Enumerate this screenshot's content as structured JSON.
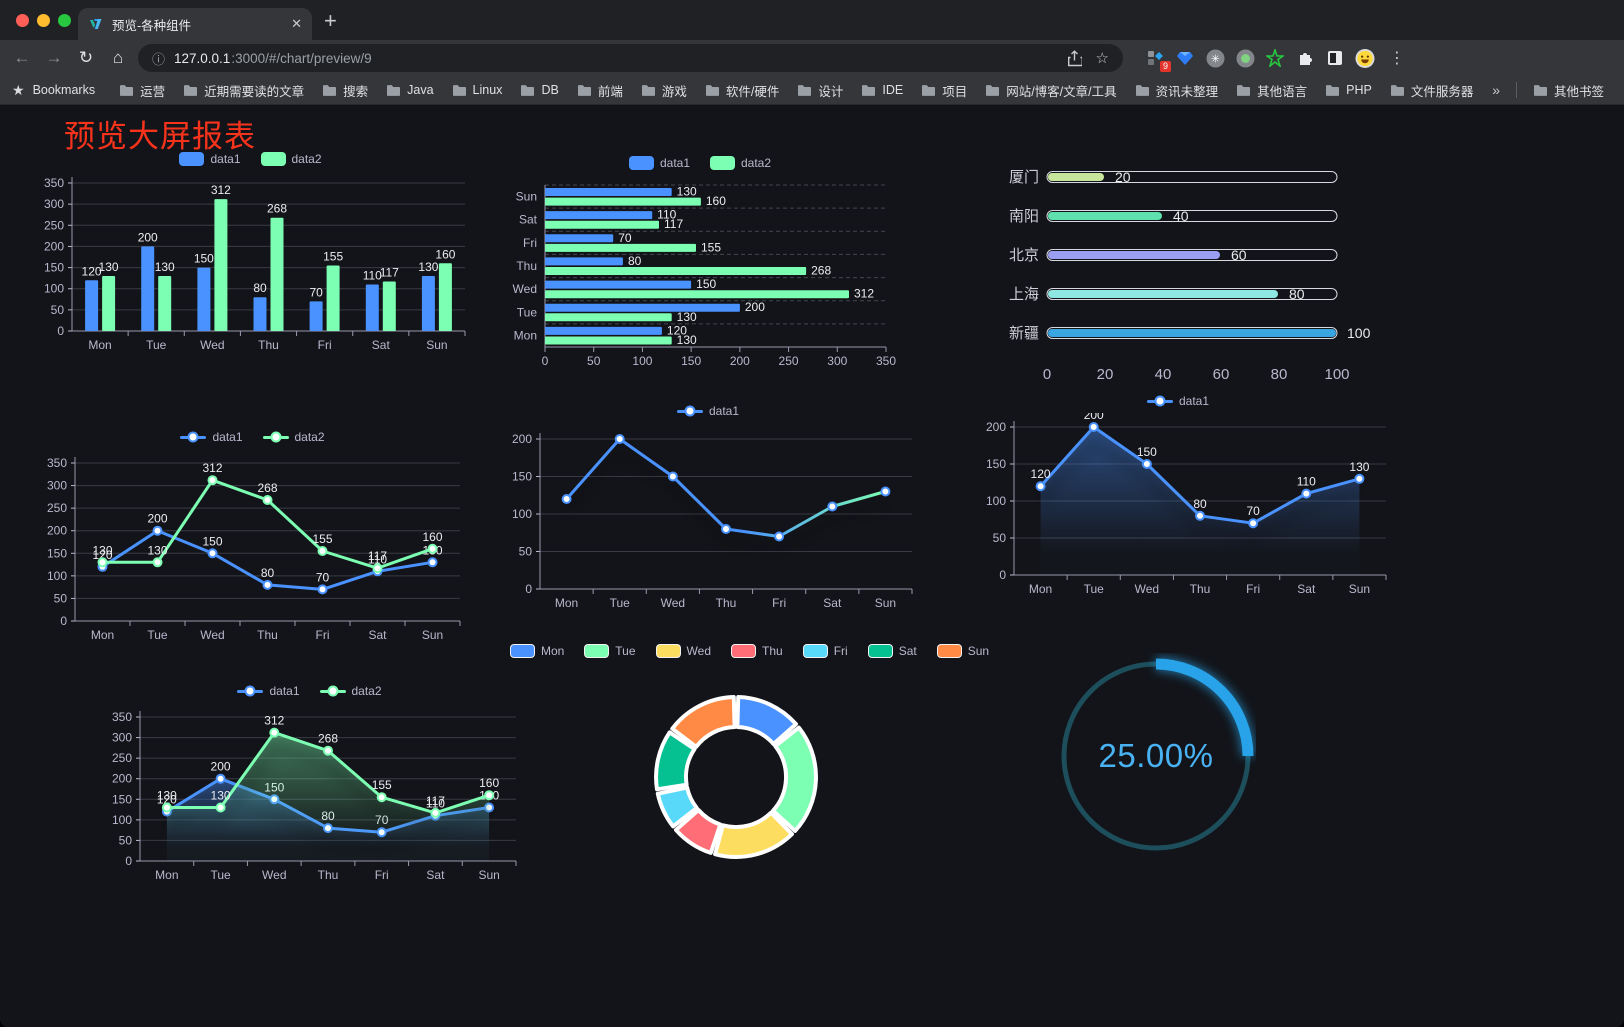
{
  "browser": {
    "tab": {
      "title": "预览-各种组件"
    },
    "new_tab_label": "+",
    "url": {
      "host": "127.0.0.1",
      "rest": ":3000/#/chart/preview/9"
    },
    "actions": {
      "extension_badge": "9"
    },
    "bookmarks_bar": {
      "label": "Bookmarks",
      "folders": [
        "运营",
        "近期需要读的文章",
        "搜索",
        "Java",
        "Linux",
        "DB",
        "前端",
        "游戏",
        "软件/硬件",
        "设计",
        "IDE",
        "项目",
        "网站/博客/文章/工具",
        "资讯未整理",
        "其他语言",
        "PHP",
        "文件服务器"
      ],
      "overflow": "»",
      "other": "其他书签"
    }
  },
  "page": {
    "title": "预览大屏报表",
    "title_color": "#f8331c"
  },
  "chart_data": [
    {
      "id": "bar-grouped",
      "type": "bar",
      "categories": [
        "Mon",
        "Tue",
        "Wed",
        "Thu",
        "Fri",
        "Sat",
        "Sun"
      ],
      "series": [
        {
          "name": "data1",
          "color": "#4992ff",
          "values": [
            120,
            200,
            150,
            80,
            70,
            110,
            130
          ]
        },
        {
          "name": "data2",
          "color": "#7cffb2",
          "values": [
            130,
            130,
            312,
            268,
            155,
            117,
            160
          ]
        }
      ],
      "ylim": [
        0,
        350
      ],
      "yticks": [
        0,
        50,
        100,
        150,
        200,
        250,
        300,
        350
      ],
      "legend_position": "top",
      "grid": true,
      "value_labels": true
    },
    {
      "id": "bar-horizontal",
      "type": "bar",
      "orientation": "horizontal",
      "categories_top_to_bottom": [
        "Sun",
        "Sat",
        "Fri",
        "Thu",
        "Wed",
        "Tue",
        "Mon"
      ],
      "series": [
        {
          "name": "data1",
          "color": "#4992ff",
          "values_top_to_bottom": [
            130,
            110,
            70,
            80,
            150,
            200,
            120
          ]
        },
        {
          "name": "data2",
          "color": "#7cffb2",
          "values_top_to_bottom": [
            160,
            117,
            155,
            268,
            312,
            130,
            130
          ]
        }
      ],
      "xlim": [
        0,
        350
      ],
      "xticks": [
        0,
        50,
        100,
        150,
        200,
        250,
        300,
        350
      ],
      "legend_position": "top",
      "value_labels": true
    },
    {
      "id": "city-progress",
      "type": "bar",
      "subtype": "progress-bars",
      "xlim": [
        0,
        100
      ],
      "xticks": [
        0,
        20,
        40,
        60,
        80,
        100
      ],
      "items": [
        {
          "label": "厦门",
          "value": 20,
          "color": "#c7e59b"
        },
        {
          "label": "南阳",
          "value": 40,
          "color": "#5ee1ad"
        },
        {
          "label": "北京",
          "value": 60,
          "color": "#9a9ff1"
        },
        {
          "label": "上海",
          "value": 80,
          "color": "#8fe7e3"
        },
        {
          "label": "新疆",
          "value": 100,
          "color": "#39a6e2"
        }
      ]
    },
    {
      "id": "line-two-series",
      "type": "line",
      "categories": [
        "Mon",
        "Tue",
        "Wed",
        "Thu",
        "Fri",
        "Sat",
        "Sun"
      ],
      "series": [
        {
          "name": "data1",
          "color": "#4992ff",
          "values": [
            120,
            200,
            150,
            80,
            70,
            110,
            130
          ]
        },
        {
          "name": "data2",
          "color": "#7cffb2",
          "values": [
            130,
            130,
            312,
            268,
            155,
            117,
            160
          ]
        }
      ],
      "ylim": [
        0,
        350
      ],
      "yticks": [
        0,
        50,
        100,
        150,
        200,
        250,
        300,
        350
      ],
      "legend_position": "top",
      "value_labels": true
    },
    {
      "id": "line-gradient",
      "type": "line",
      "categories": [
        "Mon",
        "Tue",
        "Wed",
        "Thu",
        "Fri",
        "Sat",
        "Sun"
      ],
      "series": [
        {
          "name": "data1",
          "color": "#4992ff",
          "gradient_end_color": "#7cffb2",
          "values": [
            120,
            200,
            150,
            80,
            70,
            110,
            130
          ]
        }
      ],
      "ylim": [
        0,
        200
      ],
      "yticks": [
        0,
        50,
        100,
        150,
        200
      ],
      "legend_position": "top",
      "value_labels": false
    },
    {
      "id": "area-single",
      "type": "area",
      "categories": [
        "Mon",
        "Tue",
        "Wed",
        "Thu",
        "Fri",
        "Sat",
        "Sun"
      ],
      "series": [
        {
          "name": "data1",
          "color": "#4992ff",
          "values": [
            120,
            200,
            150,
            80,
            70,
            110,
            130
          ]
        }
      ],
      "ylim": [
        0,
        200
      ],
      "yticks": [
        0,
        50,
        100,
        150,
        200
      ],
      "legend_position": "top",
      "value_labels": true
    },
    {
      "id": "area-two-series",
      "type": "area",
      "categories": [
        "Mon",
        "Tue",
        "Wed",
        "Thu",
        "Fri",
        "Sat",
        "Sun"
      ],
      "series": [
        {
          "name": "data1",
          "color": "#4992ff",
          "values": [
            120,
            200,
            150,
            80,
            70,
            110,
            130
          ]
        },
        {
          "name": "data2",
          "color": "#7cffb2",
          "values": [
            130,
            130,
            312,
            268,
            155,
            117,
            160
          ]
        }
      ],
      "ylim": [
        0,
        350
      ],
      "yticks": [
        0,
        50,
        100,
        150,
        200,
        250,
        300,
        350
      ],
      "legend_position": "top",
      "value_labels": true
    },
    {
      "id": "donut",
      "type": "pie",
      "categories": [
        "Mon",
        "Tue",
        "Wed",
        "Thu",
        "Fri",
        "Sat",
        "Sun"
      ],
      "values": [
        120,
        200,
        150,
        80,
        70,
        110,
        130
      ],
      "colors": [
        "#4992ff",
        "#7cffb2",
        "#fddd60",
        "#ff6e76",
        "#58d9f9",
        "#05c091",
        "#ff8a45"
      ],
      "legend_position": "top",
      "donut": true,
      "start_angle_deg": -90
    },
    {
      "id": "gauge",
      "type": "gauge",
      "value": 25,
      "max": 100,
      "label": "25.00%",
      "track_color": "#1d4e5c",
      "progress_color": "#28a3e9",
      "label_color": "#49b2f3"
    }
  ]
}
